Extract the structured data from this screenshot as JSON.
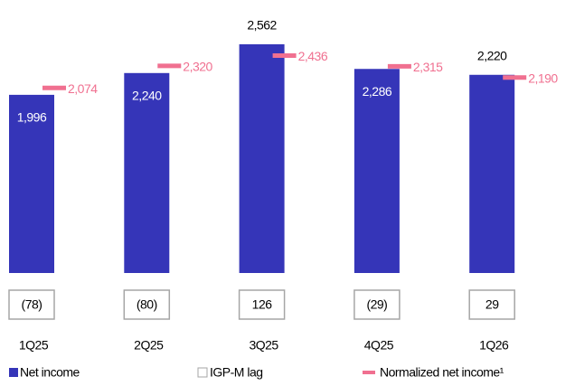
{
  "chart_data": {
    "type": "bar",
    "categories": [
      "1Q25",
      "2Q25",
      "3Q25",
      "4Q25",
      "1Q26"
    ],
    "series": [
      {
        "name": "Net income",
        "color": "#3535b8",
        "values": [
          1996,
          2240,
          2562,
          2286,
          2220
        ],
        "value_labels": [
          "1,996",
          "2,240",
          "2,562",
          "2,286",
          "2,220"
        ]
      },
      {
        "name": "IGP-M lag",
        "color": "#a6a6a6",
        "values": [
          -78,
          -80,
          126,
          -29,
          29
        ],
        "value_labels": [
          "(78)",
          "(80)",
          "126",
          "(29)",
          "29"
        ]
      },
      {
        "name": "Normalized net income¹",
        "color": "#f07090",
        "values": [
          2074,
          2320,
          2436,
          2315,
          2190
        ],
        "value_labels": [
          "2,074",
          "2,320",
          "2,436",
          "2,315",
          "2,190"
        ]
      }
    ]
  }
}
